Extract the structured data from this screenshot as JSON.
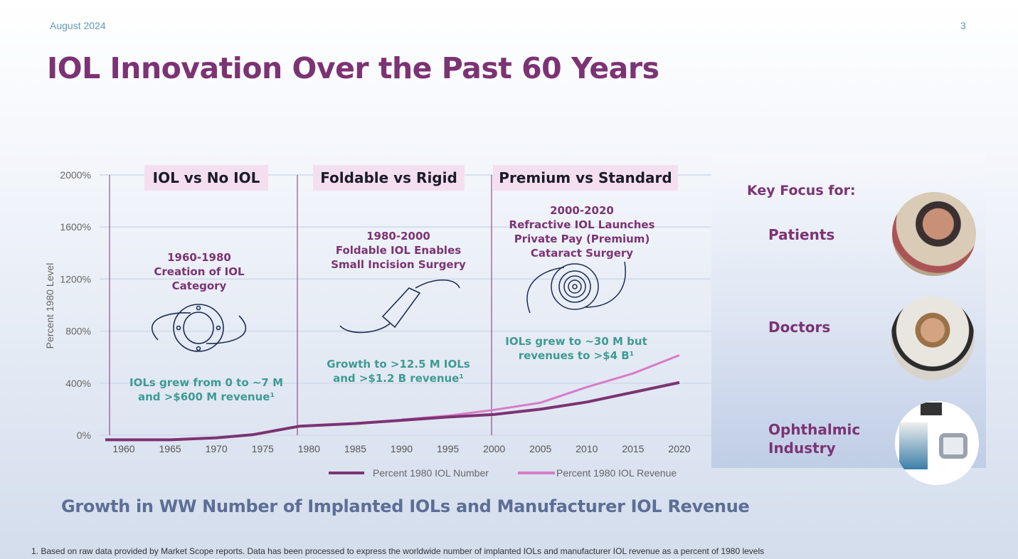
{
  "header": {
    "date": "August 2024",
    "page_number": "3",
    "title": "IOL Innovation Over the Past 60 Years"
  },
  "eras": [
    {
      "label": "IOL vs No IOL",
      "period": "1960-1980",
      "desc_lines": [
        "Creation of IOL",
        "Category"
      ],
      "growth_lines": [
        "IOLs grew from 0 to ~7 M",
        "and >$600 M revenue¹"
      ],
      "icon": "iol-lens-icon"
    },
    {
      "label": "Foldable vs Rigid",
      "period": "1980-2000",
      "desc_lines": [
        "Foldable IOL Enables",
        "Small Incision Surgery"
      ],
      "growth_lines": [
        "Growth to >12.5 M IOLs",
        "and >$1.2 B revenue¹"
      ],
      "icon": "foldable-iol-icon"
    },
    {
      "label": "Premium vs Standard",
      "period": "2000-2020",
      "desc_lines": [
        "Refractive IOL Launches",
        "Private Pay (Premium)",
        "Cataract Surgery"
      ],
      "growth_lines": [
        "IOLs grew to ~30 M  but",
        "revenues to >$4 B¹"
      ],
      "icon": "multifocal-iol-icon"
    }
  ],
  "chart_data": {
    "type": "line",
    "title": "",
    "xlabel": "",
    "ylabel": "Percent 1980 Level",
    "ylim": [
      0,
      2000
    ],
    "yticks": [
      "0%",
      "400%",
      "800%",
      "1200%",
      "1600%",
      "2000%"
    ],
    "xticks": [
      "1960",
      "1965",
      "1970",
      "1975",
      "1980",
      "1985",
      "1990",
      "1995",
      "2000",
      "2005",
      "2010",
      "2015",
      "2020"
    ],
    "grid": true,
    "legend": "bottom",
    "series": [
      {
        "name": "Percent 1980 IOL Number",
        "color": "#7c3373",
        "x": [
          1958,
          1965,
          1970,
          1974,
          1979,
          1985,
          1990,
          1995,
          2000,
          2005,
          2010,
          2015,
          2020
        ],
        "y": [
          -35,
          -35,
          -20,
          5,
          70,
          90,
          115,
          140,
          160,
          200,
          255,
          330,
          405
        ]
      },
      {
        "name": "Percent 1980 IOL Revenue",
        "color": "#d77cc7",
        "x": [
          1990,
          1995,
          2000,
          2005,
          2010,
          2015,
          2020
        ],
        "y": [
          120,
          150,
          195,
          250,
          370,
          475,
          615
        ]
      }
    ]
  },
  "side": {
    "heading": "Key Focus for:",
    "items": [
      {
        "label": "Patients",
        "image": "patient-photo"
      },
      {
        "label": "Doctors",
        "image": "doctor-photo"
      },
      {
        "label": "Ophthalmic Industry",
        "label_lines": [
          "Ophthalmic",
          "Industry"
        ],
        "image": "ophthalmic-equipment-photo"
      }
    ]
  },
  "subtitle": "Growth in WW Number of Implanted IOLs and Manufacturer IOL Revenue",
  "footnote": "1.    Based on raw data provided by Market Scope reports. Data has been processed to express the worldwide number of implanted IOLs and manufacturer IOL revenue as a percent of 1980 levels"
}
